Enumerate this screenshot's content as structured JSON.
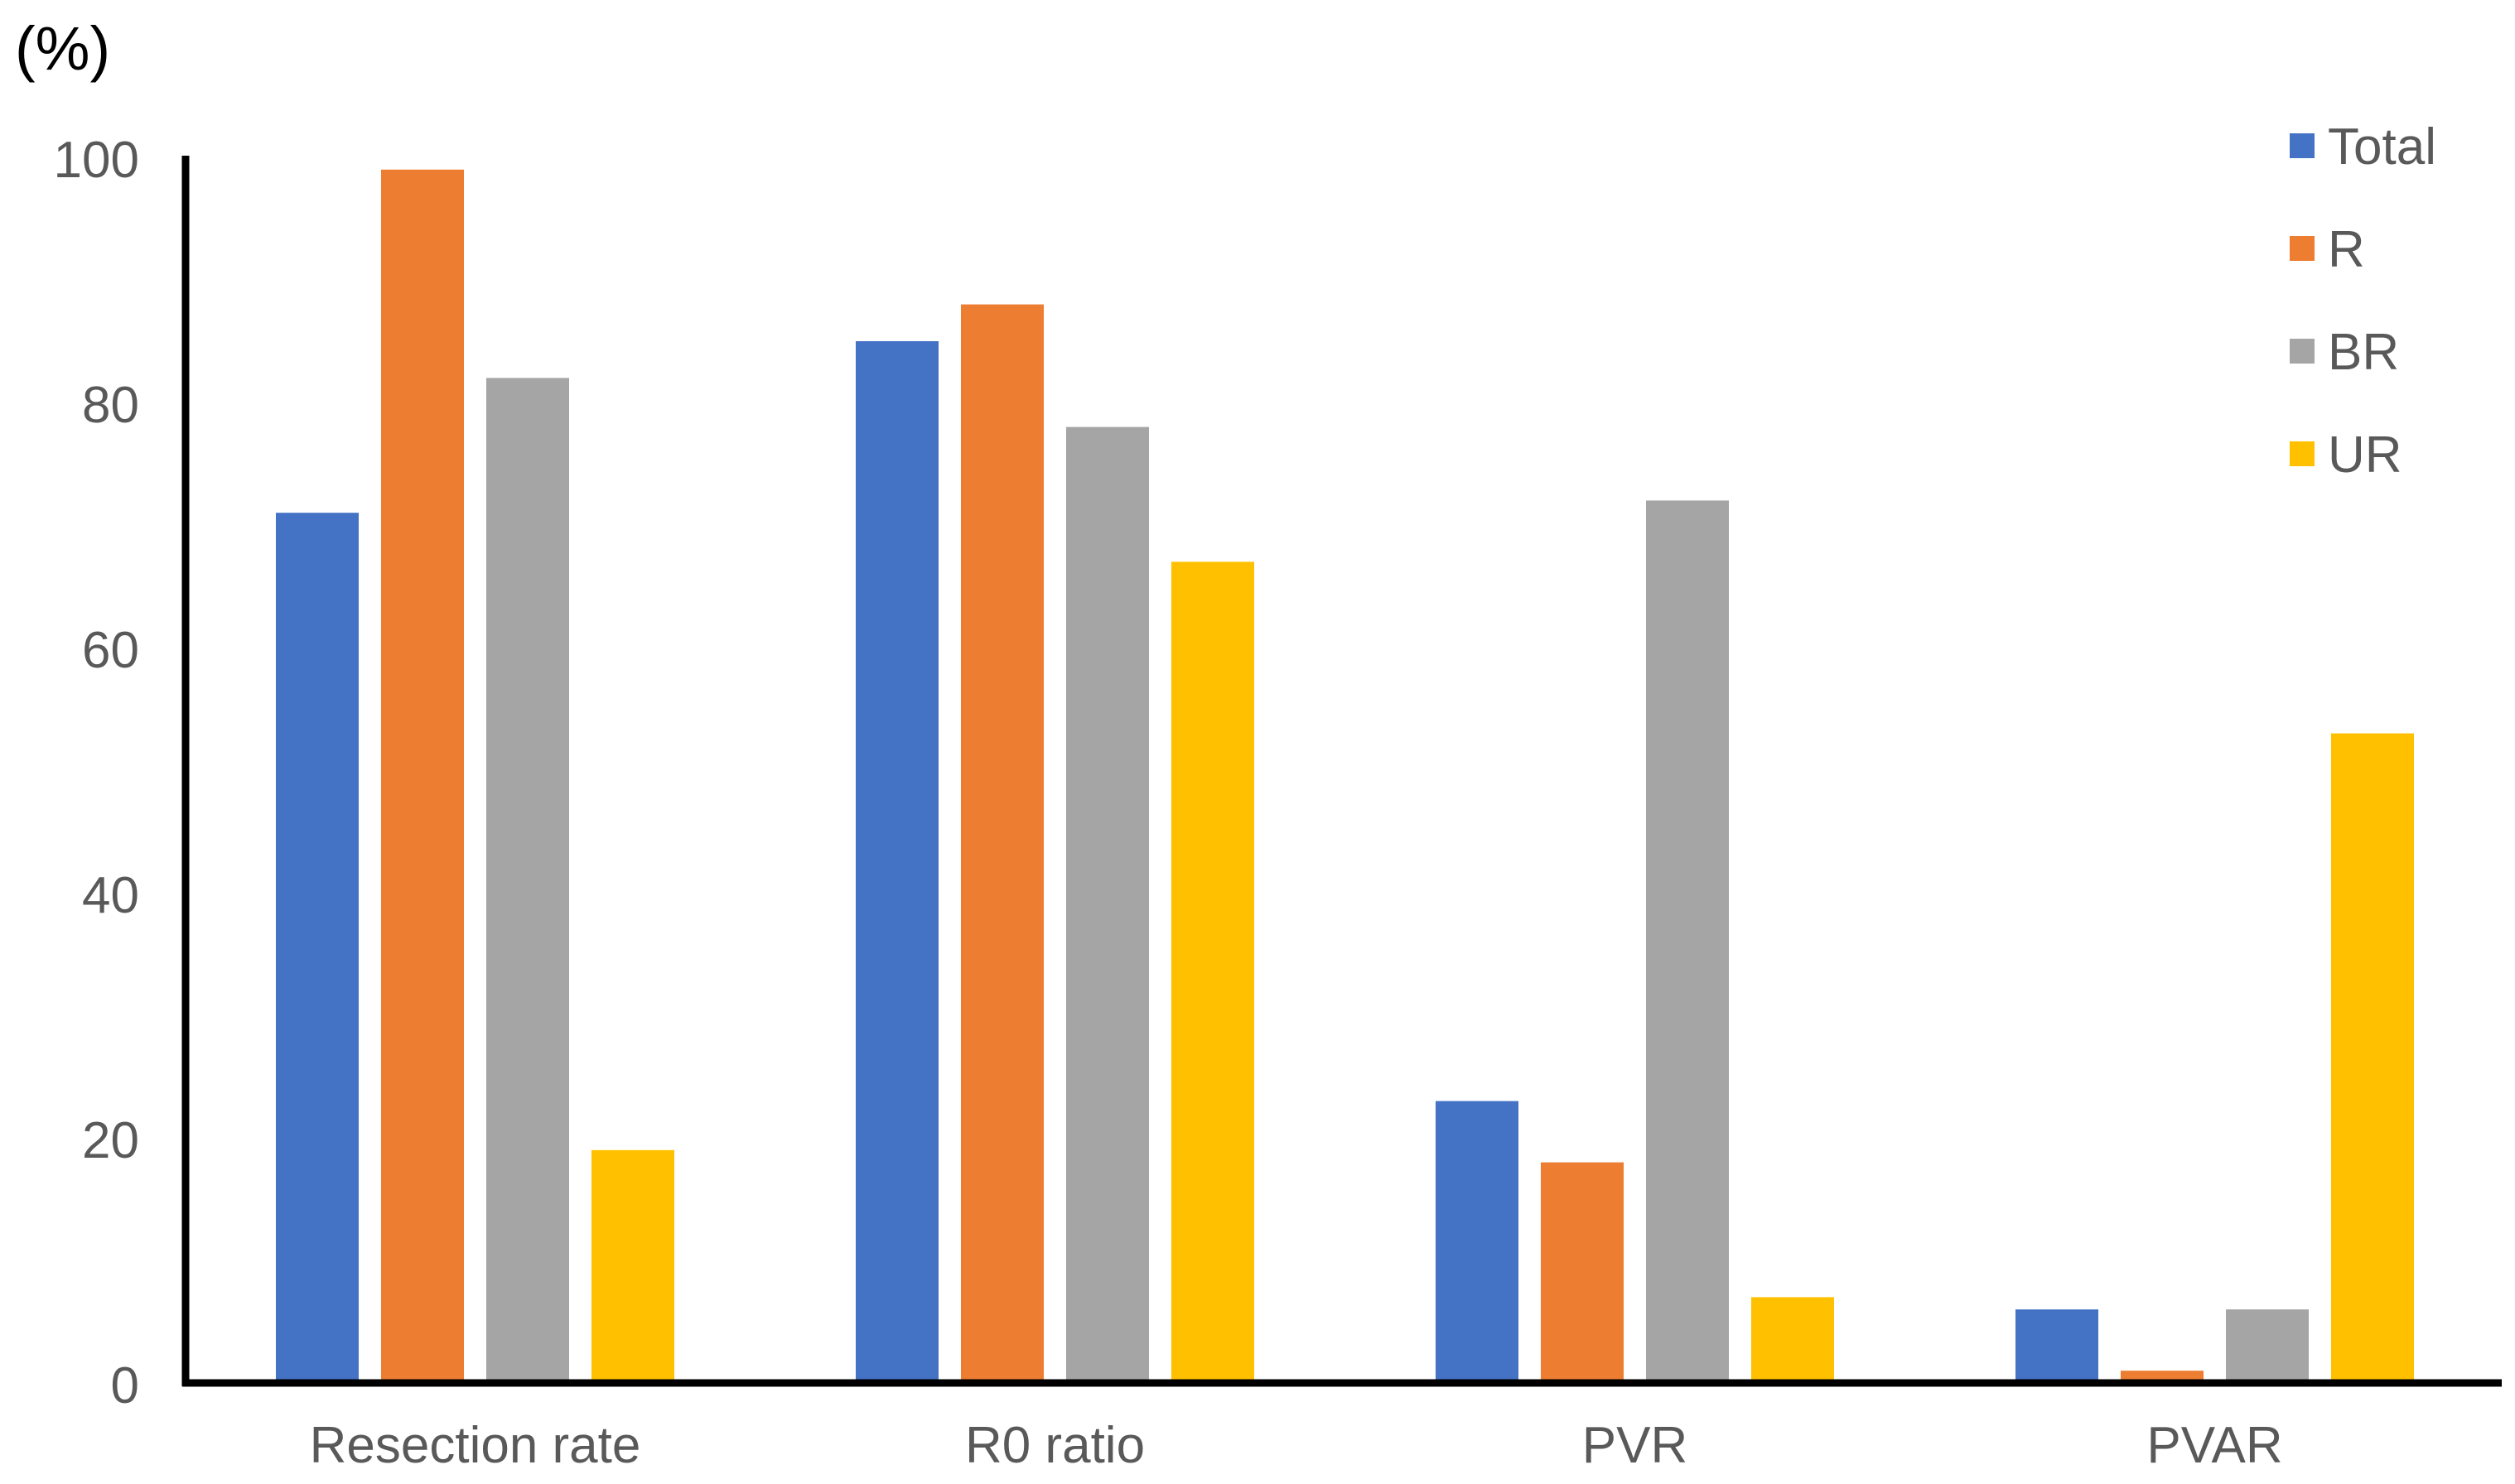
{
  "chart_data": {
    "type": "bar",
    "title": "",
    "ylabel": "(%)",
    "xlabel": "",
    "ylim": [
      0,
      100
    ],
    "yticks": [
      0,
      20,
      40,
      60,
      80,
      100
    ],
    "categories": [
      "Resection rate",
      "R0 ratio",
      "PVR",
      "PVAR"
    ],
    "series": [
      {
        "name": "Total",
        "color": "#4472C4",
        "values": [
          71,
          85,
          23,
          6
        ]
      },
      {
        "name": "R",
        "color": "#ED7D31",
        "values": [
          99,
          88,
          18,
          1
        ]
      },
      {
        "name": "BR",
        "color": "#A5A5A5",
        "values": [
          82,
          78,
          72,
          6
        ]
      },
      {
        "name": "UR",
        "color": "#FFC000",
        "values": [
          19,
          67,
          7,
          53
        ]
      }
    ],
    "legend_position": "top-right",
    "grid": false,
    "axis_color": "#000000",
    "tick_label_color": "#595959"
  }
}
